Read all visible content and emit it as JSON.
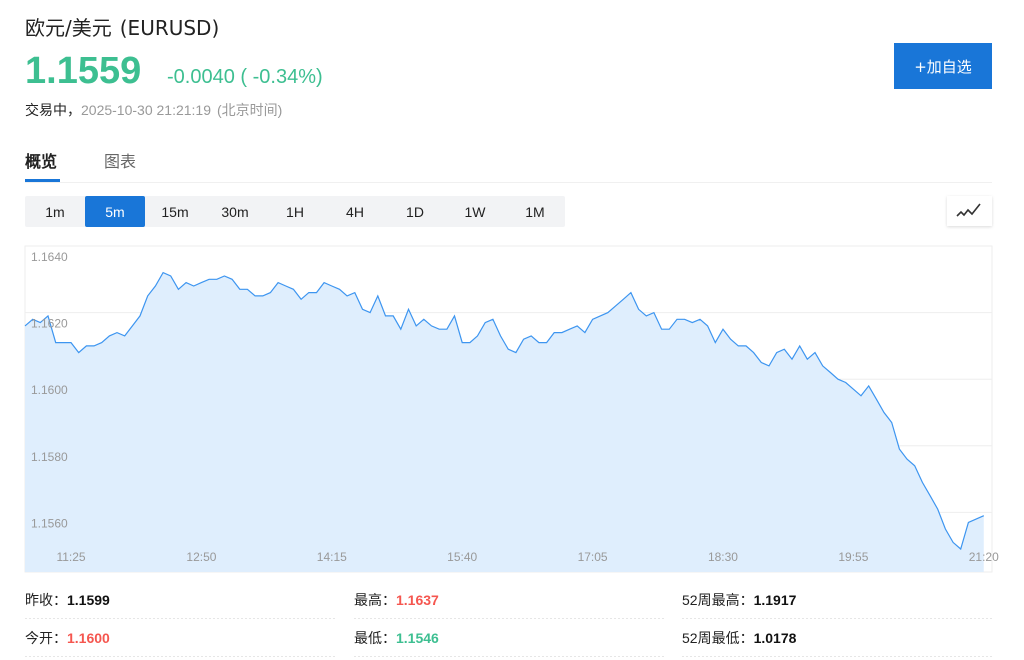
{
  "header": {
    "title": "欧元/美元",
    "symbol": "(EURUSD)",
    "price": "1.1559",
    "change": "-0.0040 ( -0.34%)",
    "status_label": "交易中，",
    "timestamp": "2025-10-30 21:21:19",
    "timezone": "(北京时间)",
    "watchlist_button": "+加自选"
  },
  "tabs": [
    {
      "label": "概览",
      "active": true
    },
    {
      "label": "图表",
      "active": false
    }
  ],
  "periods": [
    {
      "label": "1m"
    },
    {
      "label": "5m",
      "active": true
    },
    {
      "label": "15m"
    },
    {
      "label": "30m"
    },
    {
      "label": "1H"
    },
    {
      "label": "4H"
    },
    {
      "label": "1D"
    },
    {
      "label": "1W"
    },
    {
      "label": "1M"
    }
  ],
  "chart_type_icon": "line-chart-icon",
  "colors": {
    "up": "#f5564f",
    "down": "#3dbf91",
    "accent": "#1976d8",
    "line": "#3d95f0",
    "fill": "#dfeefd"
  },
  "chart_data": {
    "type": "area",
    "ylim": [
      1.1542,
      1.164
    ],
    "yticks": [
      "1.1640",
      "1.1620",
      "1.1600",
      "1.1580",
      "1.1560"
    ],
    "xticks": [
      "11:25",
      "12:50",
      "14:15",
      "15:40",
      "17:05",
      "18:30",
      "19:55",
      "21:20"
    ],
    "grid": true,
    "x": [
      "10:55",
      "11:00",
      "11:05",
      "11:10",
      "11:15",
      "11:20",
      "11:25",
      "11:30",
      "11:35",
      "11:40",
      "11:45",
      "11:50",
      "11:55",
      "12:00",
      "12:05",
      "12:10",
      "12:15",
      "12:20",
      "12:25",
      "12:30",
      "12:35",
      "12:40",
      "12:45",
      "12:50",
      "12:55",
      "13:00",
      "13:05",
      "13:10",
      "13:15",
      "13:20",
      "13:25",
      "13:30",
      "13:35",
      "13:40",
      "13:45",
      "13:50",
      "13:55",
      "14:00",
      "14:05",
      "14:10",
      "14:15",
      "14:20",
      "14:25",
      "14:30",
      "14:35",
      "14:40",
      "14:45",
      "14:50",
      "14:55",
      "15:00",
      "15:05",
      "15:10",
      "15:15",
      "15:20",
      "15:25",
      "15:30",
      "15:35",
      "15:40",
      "15:45",
      "15:50",
      "15:55",
      "16:00",
      "16:05",
      "16:10",
      "16:15",
      "16:20",
      "16:25",
      "16:30",
      "16:35",
      "16:40",
      "16:45",
      "16:50",
      "16:55",
      "17:00",
      "17:05",
      "17:10",
      "17:15",
      "17:20",
      "17:25",
      "17:30",
      "17:35",
      "17:40",
      "17:45",
      "17:50",
      "17:55",
      "18:00",
      "18:05",
      "18:10",
      "18:15",
      "18:20",
      "18:25",
      "18:30",
      "18:35",
      "18:40",
      "18:45",
      "18:50",
      "18:55",
      "19:00",
      "19:05",
      "19:10",
      "19:15",
      "19:20",
      "19:25",
      "19:30",
      "19:35",
      "19:40",
      "19:45",
      "19:50",
      "19:55",
      "20:00",
      "20:05",
      "20:10",
      "20:15",
      "20:20",
      "20:25",
      "20:30",
      "20:35",
      "20:40",
      "20:45",
      "20:50",
      "20:55",
      "21:00",
      "21:05",
      "21:10",
      "21:15",
      "21:20"
    ],
    "values": [
      1.1616,
      1.1618,
      1.1617,
      1.1619,
      1.1611,
      1.1611,
      1.1611,
      1.1608,
      1.161,
      1.161,
      1.1611,
      1.1613,
      1.1614,
      1.1613,
      1.1616,
      1.1619,
      1.1625,
      1.1628,
      1.1632,
      1.1631,
      1.1627,
      1.1629,
      1.1628,
      1.1629,
      1.163,
      1.163,
      1.1631,
      1.163,
      1.1627,
      1.1627,
      1.1625,
      1.1625,
      1.1626,
      1.1629,
      1.1628,
      1.1627,
      1.1624,
      1.1626,
      1.1626,
      1.1629,
      1.1628,
      1.1627,
      1.1625,
      1.1626,
      1.1621,
      1.162,
      1.1625,
      1.1619,
      1.1619,
      1.1615,
      1.1621,
      1.1616,
      1.1618,
      1.1616,
      1.1615,
      1.1615,
      1.1619,
      1.1611,
      1.1611,
      1.1613,
      1.1617,
      1.1618,
      1.1613,
      1.1609,
      1.1608,
      1.1612,
      1.1613,
      1.1611,
      1.1611,
      1.1614,
      1.1614,
      1.1615,
      1.1616,
      1.1614,
      1.1618,
      1.1619,
      1.162,
      1.1622,
      1.1624,
      1.1626,
      1.1621,
      1.1619,
      1.162,
      1.1615,
      1.1615,
      1.1618,
      1.1618,
      1.1617,
      1.1618,
      1.1616,
      1.1611,
      1.1615,
      1.1612,
      1.161,
      1.161,
      1.1608,
      1.1605,
      1.1604,
      1.1608,
      1.1609,
      1.1606,
      1.161,
      1.1606,
      1.1608,
      1.1604,
      1.1602,
      1.16,
      1.1599,
      1.1597,
      1.1595,
      1.1598,
      1.1594,
      1.159,
      1.1587,
      1.1579,
      1.1576,
      1.1574,
      1.1569,
      1.1565,
      1.1561,
      1.1555,
      1.1551,
      1.1549,
      1.1557,
      1.1558,
      1.1559
    ]
  },
  "stats": [
    {
      "label": "昨收：",
      "value": "1.1599",
      "tone": "neutral"
    },
    {
      "label": "最高：",
      "value": "1.1637",
      "tone": "up"
    },
    {
      "label": "52周最高：",
      "value": "1.1917",
      "tone": "neutral"
    },
    {
      "label": "今开：",
      "value": "1.1600",
      "tone": "up"
    },
    {
      "label": "最低：",
      "value": "1.1546",
      "tone": "down"
    },
    {
      "label": "52周最低：",
      "value": "1.0178",
      "tone": "neutral"
    }
  ]
}
